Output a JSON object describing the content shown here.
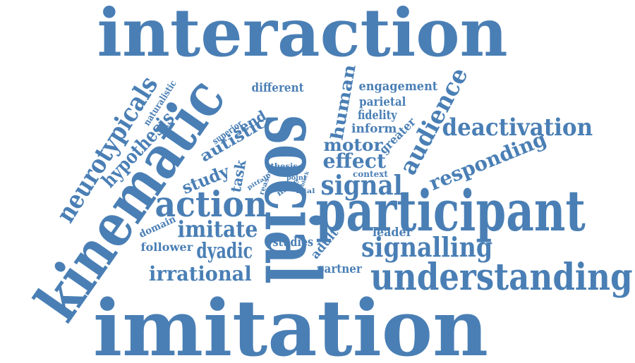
{
  "color": "#4a7fb5",
  "words": [
    "interaction",
    "imitation",
    "social",
    "kinematic",
    "participant",
    "understanding",
    "neurotypicals",
    "hypothesis",
    "action",
    "imitate",
    "dyadic",
    "irrational",
    "signalling",
    "signal",
    "deactivation",
    "responding",
    "audience",
    "engagement",
    "parietal",
    "fidelity",
    "inform",
    "motor",
    "greater",
    "effect",
    "human",
    "different",
    "naturalistic",
    "superior",
    "send",
    "autistic",
    "study",
    "task",
    "domain",
    "follower",
    "studies",
    "adult",
    "partner",
    "leader",
    "context",
    "thesis",
    "test",
    "point",
    "block",
    "pitfall",
    "reason",
    "more",
    "trial"
  ]
}
